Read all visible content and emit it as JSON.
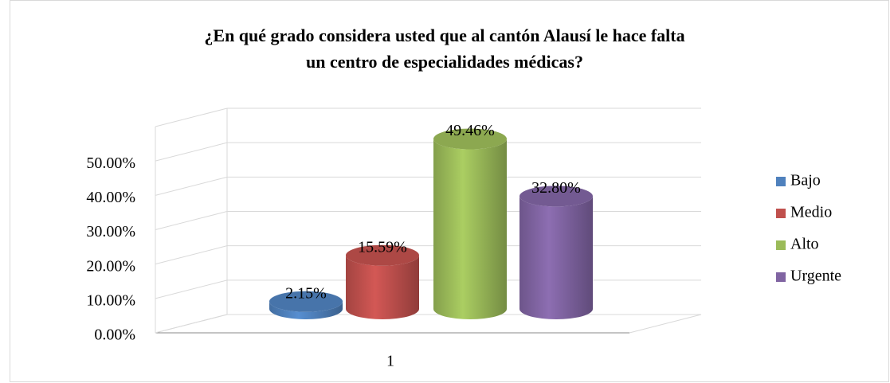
{
  "chart_data": {
    "type": "bar3d",
    "title": "¿En qué grado considera usted que al cantón Alausí le hace falta un centro de especialidades médicas?",
    "categories": [
      "1"
    ],
    "series": [
      {
        "name": "Bajo",
        "color": "#4f81bd",
        "values": [
          2.15
        ],
        "value_labels": [
          "2.15%"
        ]
      },
      {
        "name": "Medio",
        "color": "#c0504d",
        "values": [
          15.59
        ],
        "value_labels": [
          "15.59%"
        ]
      },
      {
        "name": "Alto",
        "color": "#9bbb59",
        "values": [
          49.46
        ],
        "value_labels": [
          "49.46%"
        ]
      },
      {
        "name": "Urgente",
        "color": "#8064a2",
        "values": [
          32.8
        ],
        "value_labels": [
          "32.80%"
        ]
      }
    ],
    "ylim": [
      0,
      60
    ],
    "yticks": [
      {
        "value": 0,
        "label": "0.00%"
      },
      {
        "value": 10,
        "label": "10.00%"
      },
      {
        "value": 20,
        "label": "20.00%"
      },
      {
        "value": 30,
        "label": "30.00%"
      },
      {
        "value": 40,
        "label": "40.00%"
      },
      {
        "value": 50,
        "label": "50.00%"
      }
    ],
    "grid": true,
    "legend": "right"
  }
}
